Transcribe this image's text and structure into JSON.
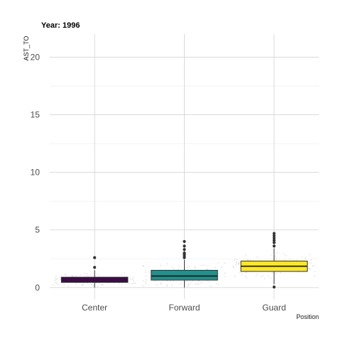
{
  "chart_data": {
    "type": "box",
    "title": "Year: 1996",
    "xlabel": "Position",
    "ylabel": "AST_TO",
    "ylim": [
      -1,
      22
    ],
    "yticks": [
      0,
      5,
      10,
      15,
      20
    ],
    "grid": true,
    "legend": "none",
    "categories": [
      "Center",
      "Forward",
      "Guard"
    ],
    "boxes": [
      {
        "category": "Center",
        "q1": 0.45,
        "median": 0.65,
        "q3": 0.9,
        "whisker_low": 0.0,
        "whisker_high": 1.5,
        "outliers": [
          1.75,
          2.6
        ],
        "color": "#440154"
      },
      {
        "category": "Forward",
        "q1": 0.65,
        "median": 1.0,
        "q3": 1.5,
        "whisker_low": 0.0,
        "whisker_high": 2.4,
        "outliers": [
          2.6,
          2.75,
          2.9,
          3.0,
          3.3,
          3.6,
          4.0
        ],
        "color": "#21918c"
      },
      {
        "category": "Guard",
        "q1": 1.4,
        "median": 1.85,
        "q3": 2.3,
        "whisker_low": 0.3,
        "whisker_high": 3.4,
        "outliers": [
          0.05,
          3.6,
          3.9,
          4.1,
          4.3,
          4.5,
          4.7
        ],
        "color": "#fde725"
      }
    ]
  }
}
